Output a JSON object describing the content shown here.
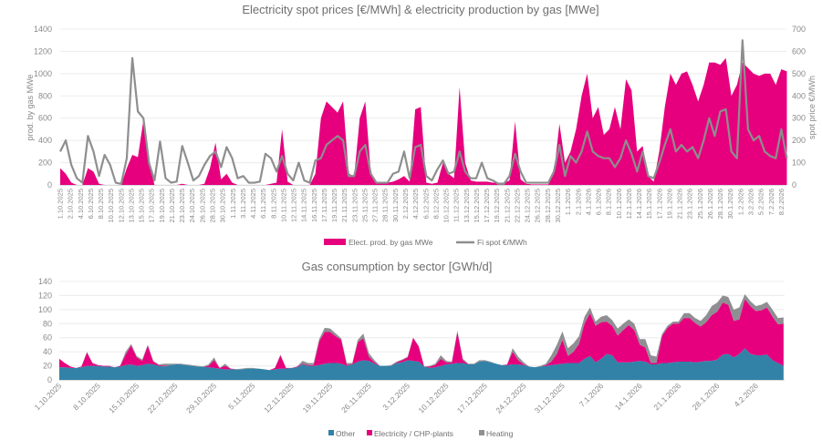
{
  "colors": {
    "pink": "#e6007e",
    "gray_line": "#8e8e8e",
    "blue": "#3282a8",
    "heating": "#8f8f93"
  },
  "chart_data": [
    {
      "type": "area+line",
      "title": "Electricity spot prices [€/MWh] & electricity production by gas [MWe]",
      "ylabel": "prod. by gas MWe",
      "y2label": "spot price €/MWh",
      "ylim": [
        0,
        1400
      ],
      "y2lim": [
        0,
        700
      ],
      "y_ticks": [
        "0",
        "200",
        "400",
        "600",
        "800",
        "1000",
        "1200",
        "1400"
      ],
      "y2_ticks": [
        "0",
        "100",
        "200",
        "300",
        "400",
        "500",
        "600",
        "700"
      ],
      "grid": true,
      "legend_position": "bottom",
      "x_start": "1.10.2025",
      "x_step": "1 day",
      "x_tick_labels": [
        "1.10.2025",
        "2.10.2025",
        "4.10.2025",
        "6.10.2025",
        "8.10.2025",
        "10.10.2025",
        "12.10.2025",
        "13.10.2025",
        "15.10.2025",
        "17.10.2025",
        "19.10.2025",
        "21.10.2025",
        "23.10.2025",
        "24.10.2025",
        "26.10.2025",
        "28.10.2025",
        "30.10.2025",
        "1.11.2025",
        "3.11.2025",
        "4.11.2025",
        "6.11.2025",
        "8.11.2025",
        "10.11.2025",
        "12.11.2025",
        "14.11.2025",
        "16.11.2025",
        "17.11.2025",
        "19.11.2025",
        "21.11.2025",
        "23.11.2025",
        "25.11.2025",
        "27.11.2025",
        "28.11.2025",
        "30.11.2025",
        "2.12.2025",
        "4.12.2025",
        "6.12.2025",
        "8.12.2025",
        "10.12.2025",
        "11.12.2025",
        "13.12.2025",
        "15.12.2025",
        "17.12.2025",
        "19.12.2025",
        "21.12.2025",
        "22.12.2025",
        "24.12.2025",
        "26.12.2025",
        "28.12.2025",
        "30.12.2025",
        "1.1.2026",
        "2.1.2026",
        "4.1.2026",
        "6.1.2026",
        "8.1.2026",
        "10.1.2026",
        "12.1.2026",
        "14.1.2026",
        "15.1.2026",
        "17.1.2026",
        "19.1.2026",
        "21.1.2026",
        "23.1.2026",
        "25.1.2026",
        "26.1.2026",
        "28.1.2026",
        "30.1.2026",
        "1.2.2026",
        "3.2.2026",
        "5.2.2026",
        "7.2.2026",
        "8.2.2026"
      ],
      "series": [
        {
          "name": "Elect. prod. by gas MWe",
          "type": "area",
          "axis": "left",
          "values": [
            150,
            100,
            20,
            0,
            0,
            150,
            120,
            10,
            0,
            0,
            0,
            0,
            150,
            270,
            250,
            580,
            200,
            0,
            0,
            0,
            0,
            0,
            10,
            0,
            0,
            0,
            10,
            150,
            380,
            50,
            100,
            20,
            0,
            0,
            0,
            0,
            0,
            0,
            10,
            20,
            500,
            30,
            0,
            0,
            0,
            0,
            100,
            600,
            750,
            700,
            650,
            750,
            100,
            80,
            600,
            750,
            100,
            20,
            20,
            20,
            30,
            50,
            80,
            30,
            680,
            700,
            20,
            10,
            20,
            200,
            100,
            60,
            880,
            200,
            40,
            30,
            30,
            30,
            20,
            20,
            20,
            40,
            570,
            50,
            10,
            5,
            5,
            5,
            5,
            100,
            550,
            200,
            300,
            500,
            800,
            1000,
            600,
            700,
            450,
            500,
            700,
            500,
            950,
            850,
            300,
            350,
            80,
            30,
            300,
            700,
            1000,
            900,
            1000,
            1020,
            900,
            750,
            900,
            1100,
            1100,
            1080,
            1140,
            800,
            900,
            1100,
            1050,
            1000,
            980,
            1000,
            1000,
            900,
            1040,
            1020
          ]
        },
        {
          "name": "Fi spot €/MWh",
          "type": "line",
          "axis": "right",
          "values": [
            150,
            200,
            90,
            30,
            10,
            220,
            150,
            40,
            135,
            90,
            10,
            5,
            120,
            570,
            330,
            300,
            100,
            20,
            195,
            30,
            10,
            15,
            175,
            100,
            20,
            40,
            90,
            130,
            150,
            80,
            170,
            120,
            30,
            40,
            10,
            10,
            15,
            140,
            120,
            60,
            130,
            50,
            20,
            100,
            20,
            10,
            110,
            120,
            180,
            200,
            220,
            200,
            40,
            40,
            150,
            180,
            50,
            10,
            10,
            10,
            50,
            60,
            150,
            30,
            170,
            180,
            40,
            20,
            70,
            110,
            50,
            60,
            150,
            60,
            30,
            30,
            100,
            30,
            20,
            5,
            5,
            40,
            140,
            60,
            10,
            10,
            10,
            10,
            10,
            60,
            180,
            40,
            130,
            100,
            150,
            240,
            150,
            130,
            120,
            120,
            80,
            120,
            200,
            140,
            60,
            150,
            40,
            30,
            100,
            180,
            250,
            150,
            180,
            150,
            170,
            120,
            200,
            300,
            220,
            330,
            340,
            150,
            120,
            650,
            250,
            200,
            220,
            150,
            130,
            120,
            250,
            120
          ]
        }
      ]
    },
    {
      "type": "area",
      "stacked": true,
      "title": "Gas consumption by sector [GWh/d]",
      "ylim": [
        0,
        140
      ],
      "y_ticks": [
        "0",
        "20",
        "40",
        "60",
        "80",
        "100",
        "120",
        "140"
      ],
      "grid": true,
      "legend_position": "bottom",
      "x_start": "1.10.2025",
      "x_step": "1 day",
      "x_tick_labels": [
        "1.10.2025",
        "8.10.2025",
        "15.10.2025",
        "22.10.2025",
        "29.10.2025",
        "5.11.2025",
        "12.11.2025",
        "19.11.2025",
        "26.11.2025",
        "3.12.2025",
        "10.12.2025",
        "17.12.2025",
        "24.12.2025",
        "31.12.2025",
        "7.1.2026",
        "14.1.2026",
        "21.1.2026",
        "28.1.2026",
        "4.2.2026"
      ],
      "series": [
        {
          "name": "Other",
          "values": [
            18,
            18,
            17,
            17,
            18,
            20,
            20,
            20,
            19,
            19,
            18,
            19,
            21,
            22,
            20,
            21,
            23,
            22,
            20,
            19,
            21,
            22,
            22,
            21,
            20,
            19,
            19,
            18,
            17,
            16,
            15,
            15,
            15,
            15,
            16,
            16,
            16,
            15,
            14,
            15,
            16,
            16,
            17,
            18,
            22,
            20,
            20,
            21,
            23,
            24,
            24,
            23,
            20,
            22,
            26,
            28,
            27,
            23,
            20,
            20,
            20,
            24,
            25,
            28,
            27,
            26,
            19,
            17,
            18,
            20,
            22,
            23,
            24,
            24,
            22,
            22,
            26,
            27,
            25,
            23,
            21,
            21,
            22,
            22,
            21,
            19,
            18,
            19,
            20,
            21,
            22,
            23,
            24,
            24,
            24,
            30,
            34,
            25,
            30,
            37,
            35,
            25,
            25,
            25,
            26,
            27,
            26,
            22,
            22,
            24,
            24,
            25,
            26,
            26,
            26,
            25,
            26,
            27,
            27,
            29,
            36,
            37,
            32,
            37,
            45,
            37,
            35,
            35,
            36,
            28,
            24,
            20
          ]
        },
        {
          "name": "Electricity / CHP-plants",
          "values": [
            12,
            6,
            2,
            0,
            1,
            19,
            4,
            1,
            1,
            1,
            0,
            1,
            15,
            27,
            12,
            6,
            26,
            4,
            1,
            1,
            0,
            0,
            0,
            0,
            0,
            0,
            0,
            2,
            11,
            1,
            5,
            1,
            0,
            0,
            0,
            0,
            0,
            0,
            0,
            2,
            19,
            1,
            0,
            1,
            1,
            1,
            1,
            34,
            45,
            44,
            38,
            34,
            1,
            1,
            28,
            31,
            6,
            2,
            0,
            0,
            0,
            1,
            3,
            4,
            33,
            22,
            0,
            2,
            3,
            10,
            3,
            2,
            44,
            4,
            0,
            0,
            0,
            0,
            0,
            0,
            0,
            1,
            18,
            6,
            1,
            0,
            0,
            0,
            1,
            5,
            15,
            34,
            10,
            16,
            27,
            50,
            61,
            52,
            52,
            46,
            42,
            38,
            46,
            53,
            45,
            23,
            20,
            2,
            2,
            38,
            50,
            55,
            54,
            62,
            62,
            56,
            50,
            55,
            65,
            68,
            74,
            70,
            52,
            49,
            70,
            68,
            63,
            64,
            67,
            62,
            55,
            60
          ]
        },
        {
          "name": "Heating",
          "values": [
            0,
            0,
            0,
            0,
            0,
            1,
            0,
            0,
            0,
            0,
            0,
            0,
            4,
            2,
            2,
            2,
            1,
            1,
            1,
            3,
            2,
            1,
            1,
            1,
            1,
            1,
            0,
            2,
            4,
            0,
            3,
            0,
            0,
            1,
            1,
            1,
            0,
            0,
            0,
            0,
            1,
            0,
            0,
            0,
            4,
            3,
            3,
            3,
            6,
            5,
            4,
            2,
            3,
            1,
            3,
            7,
            5,
            3,
            0,
            0,
            1,
            1,
            1,
            1,
            0,
            0,
            0,
            1,
            2,
            5,
            2,
            1,
            2,
            2,
            1,
            1,
            2,
            1,
            1,
            0,
            0,
            0,
            5,
            5,
            3,
            0,
            0,
            1,
            2,
            9,
            13,
            12,
            11,
            12,
            11,
            10,
            8,
            6,
            8,
            9,
            8,
            10,
            9,
            8,
            9,
            8,
            12,
            11,
            9,
            3,
            3,
            3,
            3,
            7,
            7,
            7,
            8,
            10,
            13,
            13,
            10,
            11,
            16,
            17,
            7,
            7,
            7,
            8,
            8,
            10,
            9,
            9
          ]
        }
      ]
    }
  ]
}
